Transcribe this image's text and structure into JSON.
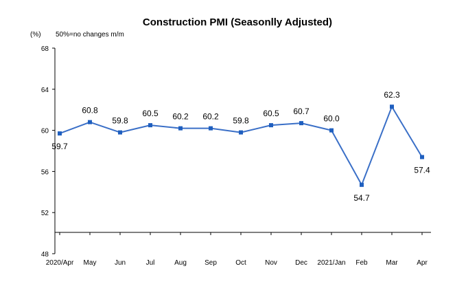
{
  "chart_data": {
    "type": "line",
    "title": "Construction PMI (Seasonlly Adjusted)",
    "unit_label": "(%)",
    "note": "50%=no changes  m/m",
    "categories": [
      "2020/Apr",
      "May",
      "Jun",
      "Jul",
      "Aug",
      "Sep",
      "Oct",
      "Nov",
      "Dec",
      "2021/Jan",
      "Feb",
      "Mar",
      "Apr"
    ],
    "series": [
      {
        "values": [
          59.7,
          60.8,
          59.8,
          60.5,
          60.2,
          60.2,
          59.8,
          60.5,
          60.7,
          60.0,
          54.7,
          62.3,
          57.4
        ],
        "labels": [
          "59.7",
          "60.8",
          "59.8",
          "60.5",
          "60.2",
          "60.2",
          "59.8",
          "60.5",
          "60.7",
          "60.0",
          "54.7",
          "62.3",
          "57.4"
        ],
        "label_position": [
          "below",
          "above",
          "above",
          "above",
          "above",
          "above",
          "above",
          "above",
          "above",
          "above",
          "below",
          "above",
          "below"
        ]
      }
    ],
    "ylim": [
      48,
      68
    ],
    "yticks": [
      "48",
      "52",
      "56",
      "60",
      "64",
      "68"
    ],
    "grid": false,
    "legend": "none",
    "colors": {
      "line": "#3a6fc7",
      "marker": "#1f5fbf",
      "axis": "#000000"
    }
  }
}
